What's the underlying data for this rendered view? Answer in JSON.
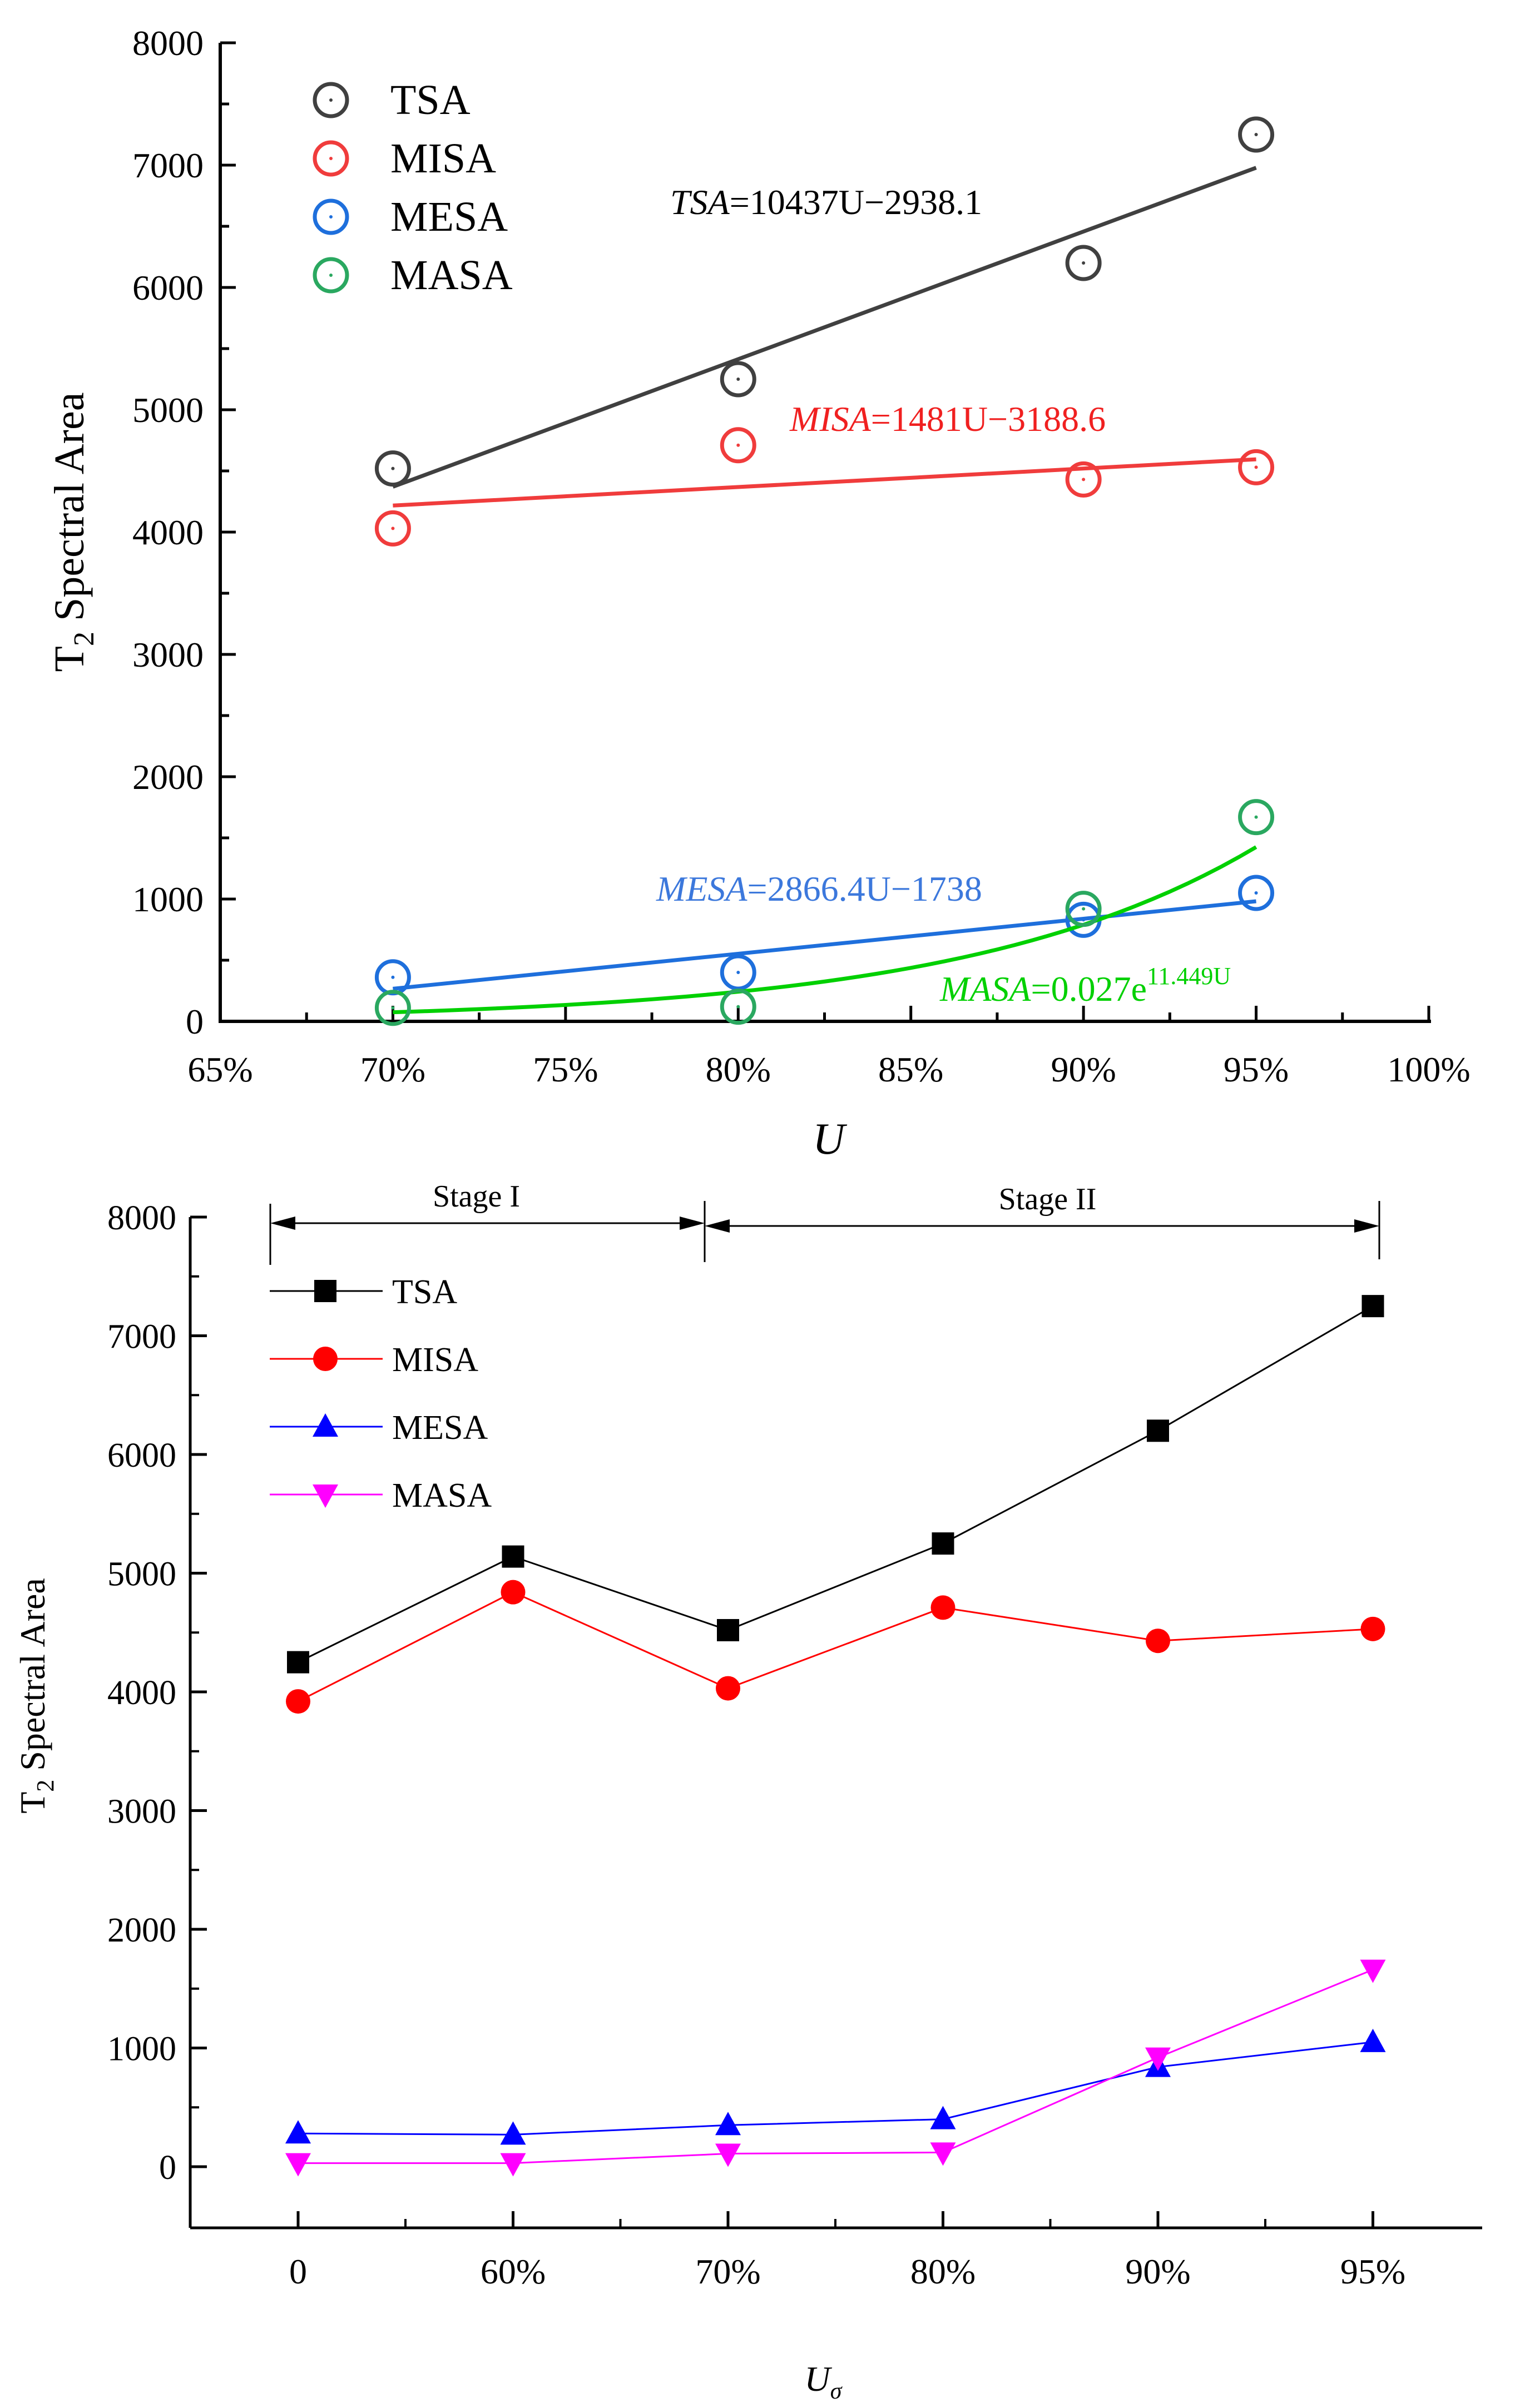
{
  "chart_data": [
    {
      "type": "scatter",
      "title": "",
      "xlabel": "U",
      "ylabel": "T2 Spectral Area",
      "ylabel_sub": "2",
      "xlim": [
        0.65,
        1.0
      ],
      "ylim": [
        0,
        8000
      ],
      "x_ticks": [
        0.65,
        0.7,
        0.75,
        0.8,
        0.85,
        0.9,
        0.95,
        1.0
      ],
      "x_tick_labels": [
        "65%",
        "70%",
        "75%",
        "80%",
        "85%",
        "90%",
        "95%",
        "100%"
      ],
      "y_ticks": [
        0,
        1000,
        2000,
        3000,
        4000,
        5000,
        6000,
        7000,
        8000
      ],
      "y_tick_labels": [
        "0",
        "1000",
        "2000",
        "3000",
        "4000",
        "5000",
        "6000",
        "7000",
        "8000"
      ],
      "legend_position": "top-left",
      "x": [
        0.7,
        0.8,
        0.9,
        0.95
      ],
      "series": [
        {
          "name": "TSA",
          "color": "#404040",
          "values": [
            4520,
            5250,
            6200,
            7250
          ],
          "fit": "linear",
          "equation_prefix": "TSA",
          "equation_rest": "=10437U−2938.1"
        },
        {
          "name": "MISA",
          "color": "#f03c3c",
          "values": [
            4030,
            4710,
            4430,
            4530
          ],
          "fit": "linear",
          "equation_prefix": "MISA",
          "equation_rest": "=1481U−3188.6"
        },
        {
          "name": "MESA",
          "color": "#1e6fdc",
          "values": [
            360,
            400,
            830,
            1050
          ],
          "fit": "linear",
          "equation_prefix": "MESA",
          "equation_rest": "=2866.4U−1738"
        },
        {
          "name": "MASA",
          "color": "#2aa860",
          "values": [
            110,
            120,
            920,
            1670
          ],
          "fit": "exponential",
          "fit_color": "#00d000",
          "equation_prefix": "MASA",
          "equation_rest": "=0.027e",
          "equation_sup": "11.449U"
        }
      ]
    },
    {
      "type": "line",
      "title": "",
      "xlabel": "Uσ",
      "ylabel": "T2 Spectral Area",
      "ylabel_sub": "2",
      "categories": [
        "0",
        "60%",
        "70%",
        "80%",
        "90%",
        "95%"
      ],
      "ylim": [
        0,
        8000
      ],
      "y_ticks": [
        0,
        1000,
        2000,
        3000,
        4000,
        5000,
        6000,
        7000,
        8000
      ],
      "y_tick_labels": [
        "0",
        "1000",
        "2000",
        "3000",
        "4000",
        "5000",
        "6000",
        "7000",
        "8000"
      ],
      "legend_position": "top-left",
      "annotations": [
        {
          "text": "Stage I",
          "from": "0",
          "to": "70%"
        },
        {
          "text": "Stage II",
          "from": "70%",
          "to": "95%"
        }
      ],
      "series": [
        {
          "name": "TSA",
          "color": "#000000",
          "marker": "square",
          "values": [
            4250,
            5140,
            4520,
            5250,
            6200,
            7250
          ]
        },
        {
          "name": "MISA",
          "color": "#ff0000",
          "marker": "circle",
          "values": [
            3920,
            4840,
            4030,
            4710,
            4430,
            4530
          ]
        },
        {
          "name": "MESA",
          "color": "#0000ff",
          "marker": "triangle-up",
          "values": [
            280,
            270,
            350,
            400,
            840,
            1050
          ]
        },
        {
          "name": "MASA",
          "color": "#ff00ff",
          "marker": "triangle-down",
          "values": [
            30,
            30,
            110,
            120,
            920,
            1660
          ]
        }
      ]
    }
  ]
}
